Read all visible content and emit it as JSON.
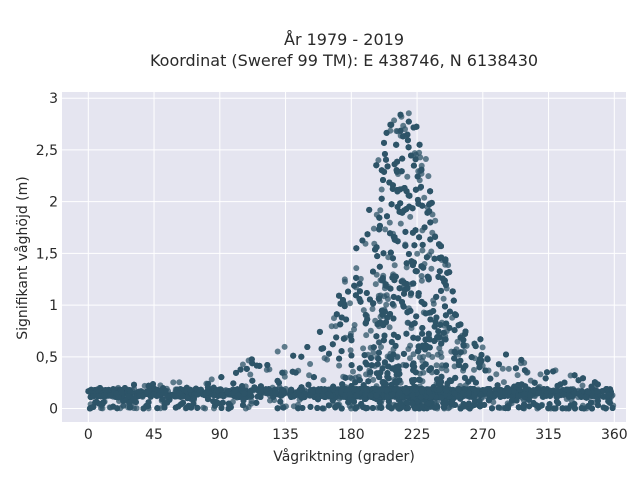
{
  "chart_data": {
    "type": "scatter",
    "title_line1": "År 1979 - 2019",
    "title_line2": "Koordinat (Sweref 99 TM): E 438746, N 6138430",
    "xlabel": "Vågriktning (grader)",
    "ylabel": "Signifikant våghöjd (m)",
    "xlim": [
      -18,
      368
    ],
    "ylim": [
      -0.13,
      3.06
    ],
    "x_ticks": [
      0,
      45,
      90,
      135,
      180,
      225,
      270,
      315,
      360
    ],
    "x_tick_labels": [
      "0",
      "45",
      "90",
      "135",
      "180",
      "225",
      "270",
      "315",
      "360"
    ],
    "y_ticks": [
      0,
      0.5,
      1,
      1.5,
      2,
      2.5,
      3
    ],
    "y_tick_labels": [
      "0",
      "0,5",
      "1",
      "1,5",
      "2",
      "2,5",
      "3"
    ],
    "grid": true,
    "marker_color": "#2e5468",
    "distribution": {
      "x_range": [
        0,
        360
      ],
      "peak_direction": 220,
      "peak_height": 2.93,
      "baseline_height": 0.15,
      "lower_envelope": 0.0
    },
    "envelope": [
      {
        "x": 0,
        "y": 0.2
      },
      {
        "x": 45,
        "y": 0.25
      },
      {
        "x": 90,
        "y": 0.3
      },
      {
        "x": 110,
        "y": 0.47
      },
      {
        "x": 135,
        "y": 0.6
      },
      {
        "x": 160,
        "y": 0.8
      },
      {
        "x": 180,
        "y": 1.4
      },
      {
        "x": 190,
        "y": 2.0
      },
      {
        "x": 200,
        "y": 2.6
      },
      {
        "x": 210,
        "y": 2.85
      },
      {
        "x": 220,
        "y": 2.93
      },
      {
        "x": 230,
        "y": 2.5
      },
      {
        "x": 240,
        "y": 1.7
      },
      {
        "x": 255,
        "y": 1.0
      },
      {
        "x": 270,
        "y": 0.65
      },
      {
        "x": 290,
        "y": 0.5
      },
      {
        "x": 315,
        "y": 0.4
      },
      {
        "x": 340,
        "y": 0.3
      },
      {
        "x": 360,
        "y": 0.2
      }
    ]
  }
}
